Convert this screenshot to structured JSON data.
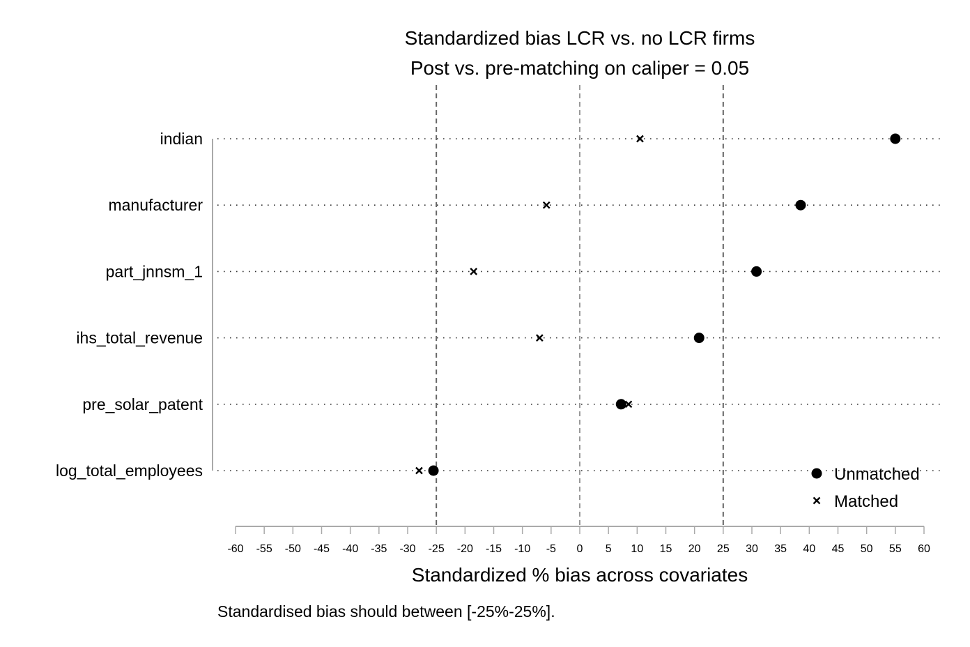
{
  "chart_data": {
    "type": "scatter",
    "title": "Standardized bias LCR vs. no LCR firms",
    "subtitle": "Post vs. pre-matching on caliper = 0.05",
    "xlabel": "Standardized % bias across covariates",
    "note": "Standardised bias should between [-25%-25%].",
    "xlim": [
      -60,
      60
    ],
    "xticks": [
      -60,
      -55,
      -50,
      -45,
      -40,
      -35,
      -30,
      -25,
      -20,
      -15,
      -10,
      -5,
      0,
      5,
      10,
      15,
      20,
      25,
      30,
      35,
      40,
      45,
      50,
      55,
      60
    ],
    "reference_lines": [
      -25,
      0,
      25
    ],
    "categories": [
      "indian",
      "manufacturer",
      "part_jnnsm_1",
      "ihs_total_revenue",
      "pre_solar_patent",
      "log_total_employees"
    ],
    "series": [
      {
        "name": "Unmatched",
        "marker": "circle",
        "values": [
          55.0,
          38.5,
          30.8,
          20.8,
          7.2,
          -25.5
        ]
      },
      {
        "name": "Matched",
        "marker": "x",
        "values": [
          10.5,
          -5.8,
          -18.5,
          -7.0,
          8.5,
          -28.0
        ]
      }
    ],
    "legend_position": "bottom-right",
    "grid": "dotted horizontal"
  }
}
